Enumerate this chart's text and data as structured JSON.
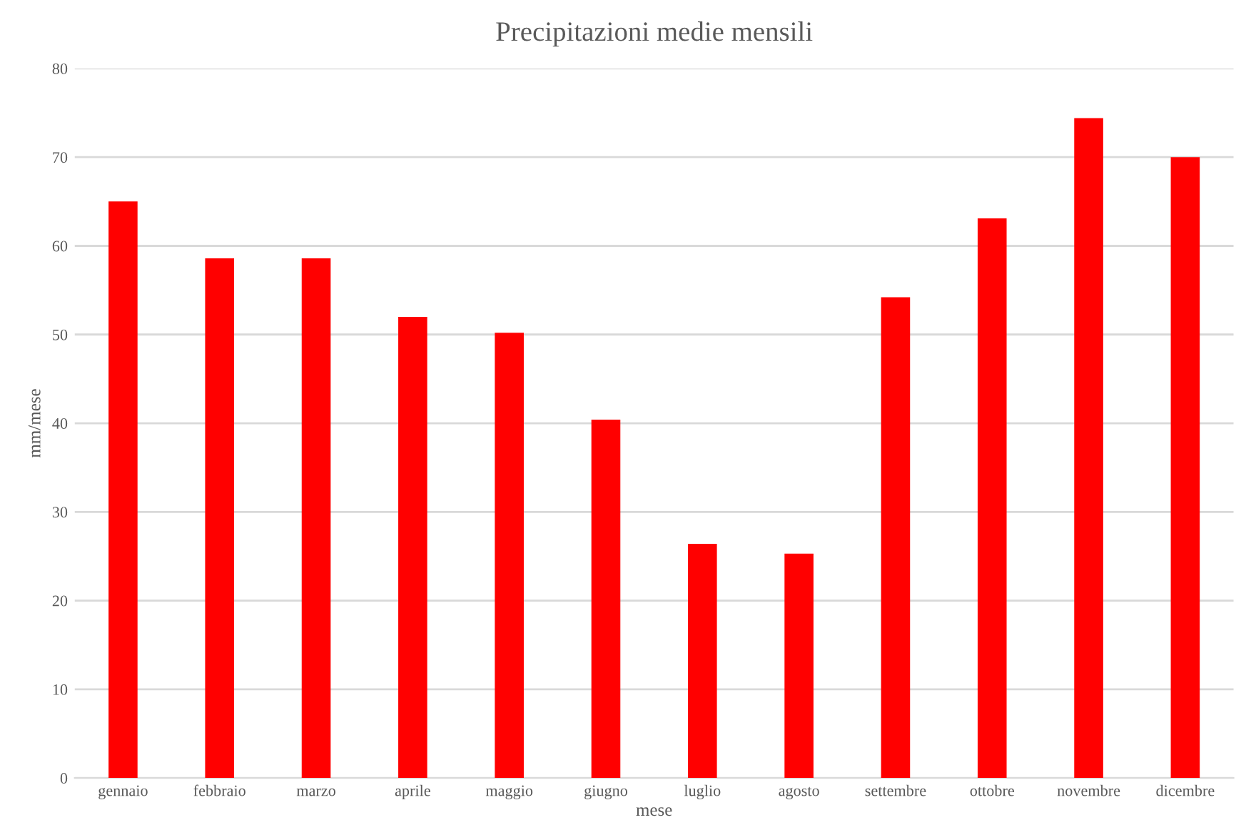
{
  "chart_data": {
    "type": "bar",
    "title": "Precipitazioni medie mensili",
    "xlabel": "mese",
    "ylabel": "mm/mese",
    "categories": [
      "gennaio",
      "febbraio",
      "marzo",
      "aprile",
      "maggio",
      "giugno",
      "luglio",
      "agosto",
      "settembre",
      "ottobre",
      "novembre",
      "dicembre"
    ],
    "values": [
      65.0,
      58.6,
      58.6,
      52.0,
      50.2,
      40.4,
      26.4,
      25.3,
      54.2,
      63.1,
      74.4,
      70.0
    ],
    "color": "#ff0000",
    "ylim": [
      0,
      80
    ],
    "yticks": [
      0,
      10,
      20,
      30,
      40,
      50,
      60,
      70,
      80
    ],
    "grid": "y"
  }
}
